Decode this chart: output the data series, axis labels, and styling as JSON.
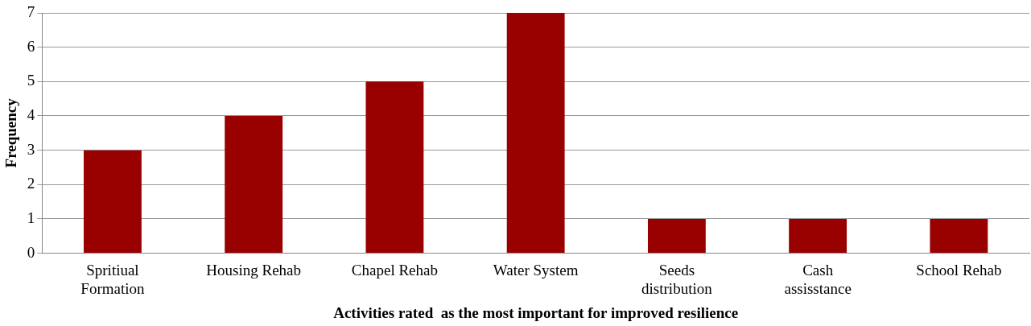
{
  "chart_data": {
    "type": "bar",
    "xlabel": "Activities rated  as the most important for improved resilience",
    "ylabel": "Frequency",
    "categories": [
      "Spritiual\nFormation",
      "Housing Rehab",
      "Chapel Rehab",
      "Water System",
      "Seeds\ndistribution",
      "Cash\nassisstance",
      "School Rehab"
    ],
    "values": [
      3,
      4,
      5,
      7,
      1,
      1,
      1
    ],
    "color": "#990000",
    "ylim": [
      0,
      7
    ],
    "yticks": [
      0,
      1,
      2,
      3,
      4,
      5,
      6,
      7
    ],
    "grid": "y",
    "legend": false
  }
}
